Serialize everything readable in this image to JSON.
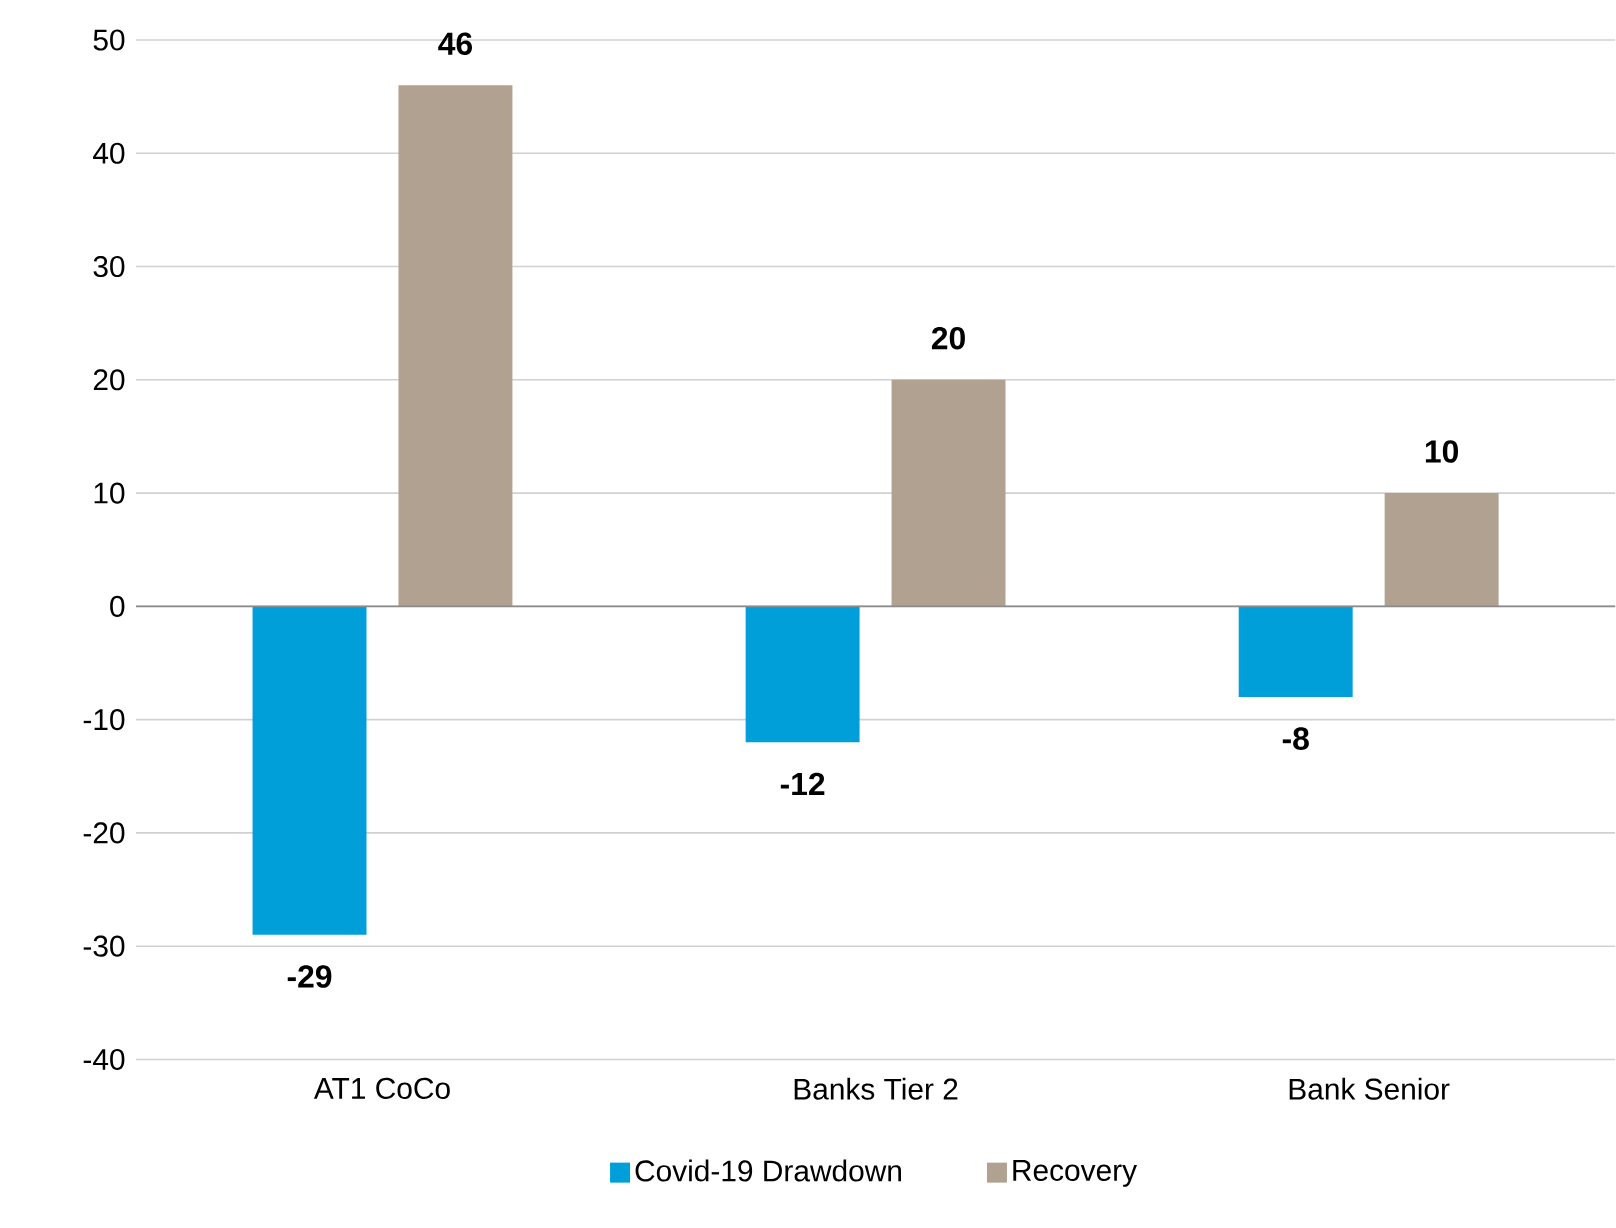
{
  "chart_data": {
    "type": "bar",
    "categories": [
      "AT1 CoCo",
      "Banks Tier 2",
      "Bank Senior"
    ],
    "series": [
      {
        "name": "Covid-19 Drawdown",
        "color": "#009fda",
        "values": [
          -29,
          -12,
          -8
        ]
      },
      {
        "name": "Recovery",
        "color": "#b0a191",
        "values": [
          46,
          20,
          10
        ]
      }
    ],
    "ylim": [
      -40,
      50
    ],
    "yticks": [
      -40,
      -30,
      -20,
      -10,
      0,
      10,
      20,
      30,
      40,
      50
    ],
    "grid": "y",
    "legend": "bottom",
    "data_labels": true
  }
}
